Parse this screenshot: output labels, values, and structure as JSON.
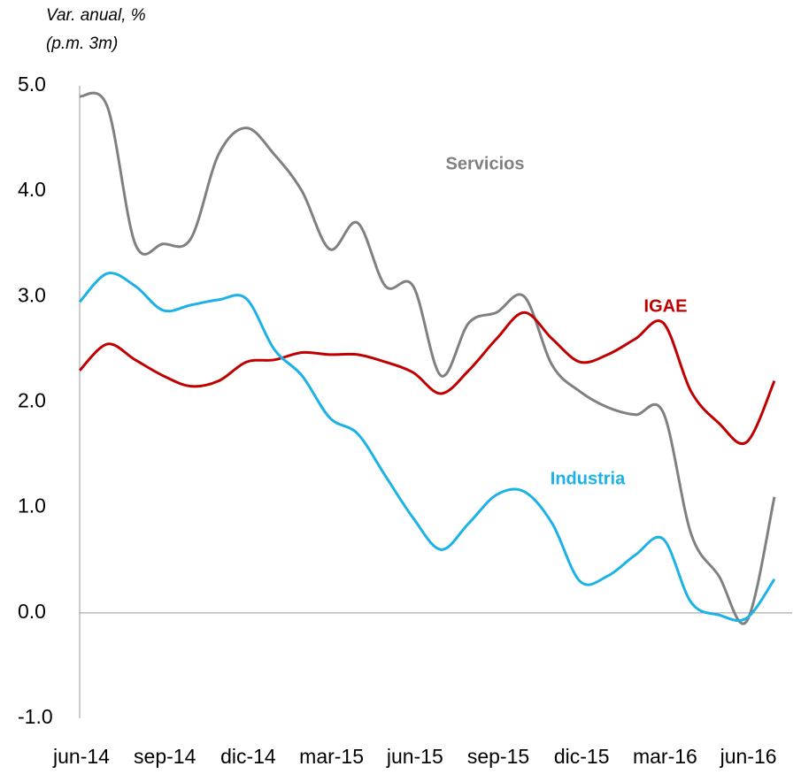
{
  "chart_data": {
    "type": "line",
    "y_label": [
      "Var. anual, %",
      "(p.m. 3m)"
    ],
    "categories": [
      "jun-14",
      null,
      null,
      "sep-14",
      null,
      null,
      "dic-14",
      null,
      null,
      "mar-15",
      null,
      null,
      "jun-15",
      null,
      null,
      "sep-15",
      null,
      null,
      "dic-15",
      null,
      null,
      "mar-16",
      null,
      null,
      "jun-16",
      null
    ],
    "series": [
      {
        "name": "Servicios",
        "color": "#808080",
        "values": [
          4.9,
          4.8,
          3.5,
          3.5,
          3.55,
          4.35,
          4.6,
          4.35,
          4.0,
          3.45,
          3.7,
          3.1,
          3.1,
          2.25,
          2.75,
          2.85,
          3.0,
          2.35,
          2.1,
          1.95,
          1.88,
          1.9,
          0.75,
          0.35,
          -0.08,
          1.1
        ]
      },
      {
        "name": "IGAE",
        "color": "#c00000",
        "values": [
          2.3,
          2.55,
          2.4,
          2.25,
          2.15,
          2.2,
          2.38,
          2.4,
          2.47,
          2.45,
          2.45,
          2.38,
          2.28,
          2.08,
          2.3,
          2.6,
          2.85,
          2.6,
          2.38,
          2.45,
          2.6,
          2.75,
          2.1,
          1.8,
          1.62,
          2.2
        ]
      },
      {
        "name": "Industria",
        "color": "#1cb2e6",
        "values": [
          2.95,
          3.22,
          3.1,
          2.87,
          2.92,
          2.97,
          2.98,
          2.5,
          2.25,
          1.85,
          1.7,
          1.3,
          0.9,
          0.6,
          0.85,
          1.12,
          1.15,
          0.85,
          0.3,
          0.35,
          0.55,
          0.7,
          0.1,
          -0.02,
          -0.05,
          0.32
        ]
      }
    ],
    "ylim": [
      -1,
      5
    ],
    "yticks": [
      {
        "value": -1,
        "label": "-1.0"
      },
      {
        "value": 0,
        "label": "0.0"
      },
      {
        "value": 1,
        "label": "1.0"
      },
      {
        "value": 2,
        "label": "2.0"
      },
      {
        "value": 3,
        "label": "3.0"
      },
      {
        "value": 4,
        "label": "4.0"
      },
      {
        "value": 5,
        "label": "5.0"
      }
    ]
  }
}
